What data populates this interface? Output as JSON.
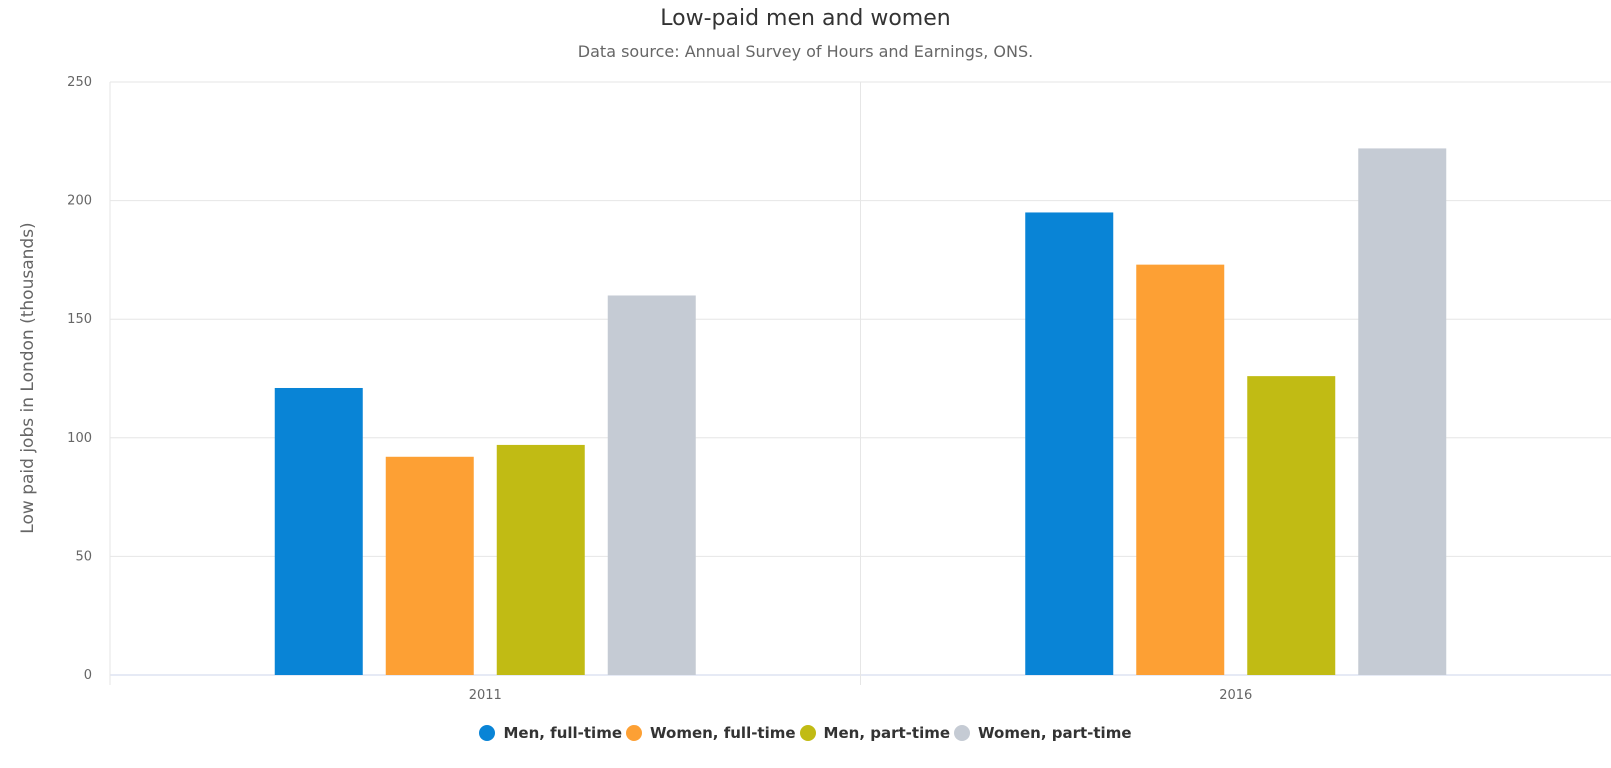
{
  "chart_data": {
    "type": "bar",
    "title": "Low-paid men and women",
    "subtitle": "Data source: Annual Survey of Hours and Earnings, ONS.",
    "xlabel": "",
    "ylabel": "Low paid jobs in London (thousands)",
    "categories": [
      "2011",
      "2016"
    ],
    "ylim": [
      0,
      250
    ],
    "yticks": [
      0,
      50,
      100,
      150,
      200,
      250
    ],
    "grid": true,
    "legend_position": "bottom-center",
    "series": [
      {
        "name": "Men, full-time",
        "color": "#0984d6",
        "values": [
          121,
          195
        ]
      },
      {
        "name": "Women, full-time",
        "color": "#fda034",
        "values": [
          92,
          173
        ]
      },
      {
        "name": "Men, part-time",
        "color": "#c1bb14",
        "values": [
          97,
          126
        ]
      },
      {
        "name": "Women, part-time",
        "color": "#c5cbd4",
        "values": [
          160,
          222
        ]
      }
    ]
  }
}
